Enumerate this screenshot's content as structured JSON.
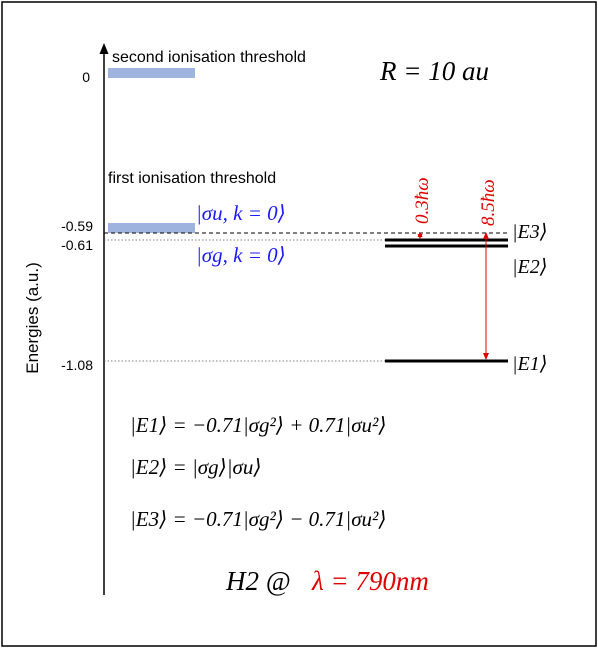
{
  "figure": {
    "y_axis_label": "Energies (a.u.)",
    "ticks": [
      "0",
      "-0.59",
      "-0.61",
      "-1.08"
    ],
    "second_threshold_label": "second ionisation threshold",
    "first_threshold_label": "first ionisation threshold",
    "separation": "R = 10 au",
    "sigma_u_state": "|σu, k = 0⟩",
    "sigma_g_state": "|σg, k = 0⟩",
    "gap_small": "0.3ħω",
    "gap_large": "8.5ħω",
    "ket_E3": "|E3⟩",
    "ket_E2": "|E2⟩",
    "ket_E1": "|E1⟩",
    "eq_E1": "|E1⟩ = −0.71|σg²⟩ + 0.71|σu²⟩",
    "eq_E2": "|E2⟩ = |σg⟩|σu⟩",
    "eq_E3": "|E3⟩ = −0.71|σg²⟩ − 0.71|σu²⟩",
    "molecule": "H2 @",
    "wavelength": "λ = 790nm",
    "colors": {
      "threshold_band": "#9fb3df",
      "blue_text": "#1a1aff",
      "red": "#e00000",
      "black": "#000000"
    }
  }
}
